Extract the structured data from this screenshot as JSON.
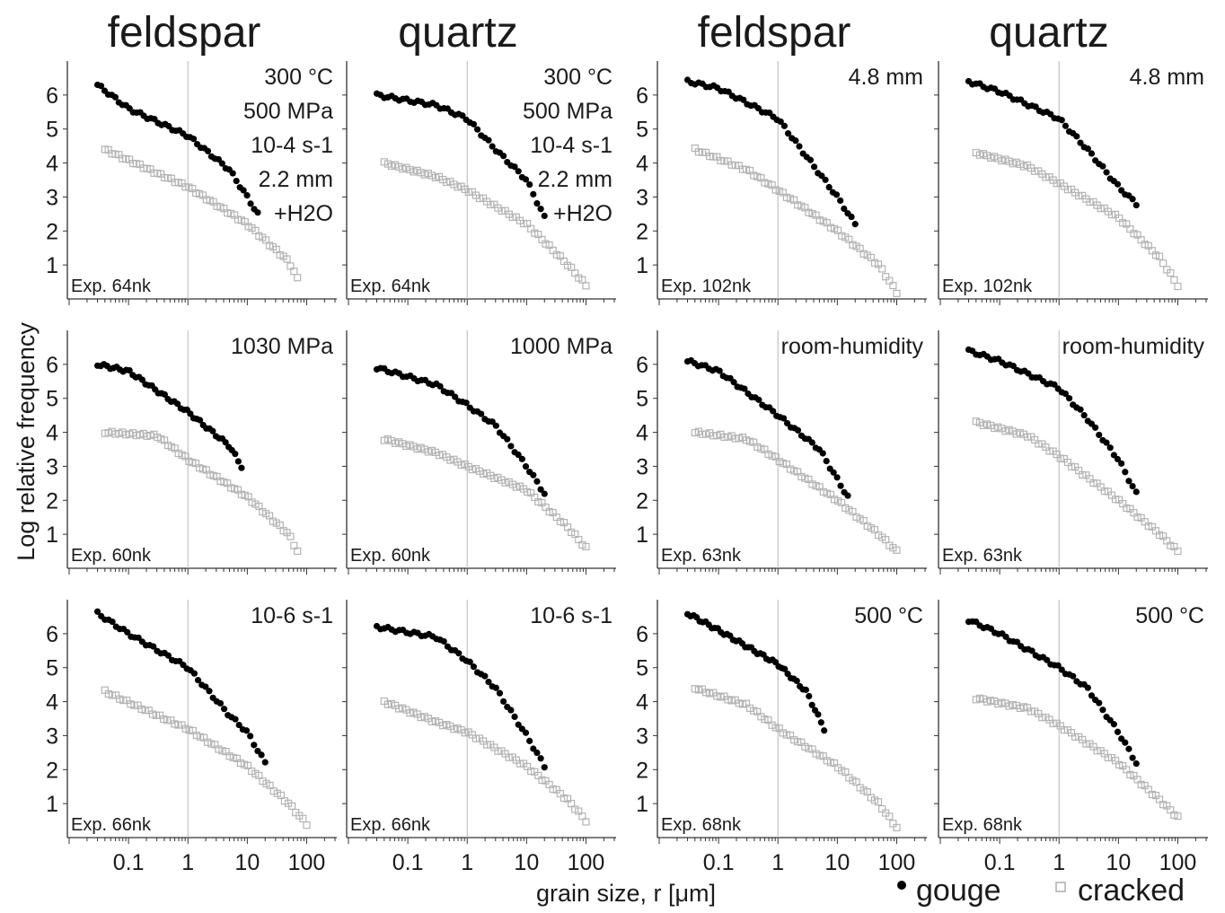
{
  "chart_data": {
    "type": "scatter",
    "column_titles": [
      "feldspar",
      "quartz",
      "feldspar",
      "quartz"
    ],
    "xlabel": "grain size, r [μm]",
    "ylabel": "Log relative frequency",
    "x_scale": "log",
    "xlim": [
      0.01,
      300
    ],
    "ylim": [
      0,
      7
    ],
    "x_ticks": [
      "0.1",
      "1",
      "10",
      "100"
    ],
    "y_ticks": [
      "1",
      "2",
      "3",
      "4",
      "5",
      "6"
    ],
    "legend": {
      "placement": "bottom-right",
      "gouge": "gouge",
      "cracked": "cracked"
    },
    "colors": {
      "gouge": "#000000",
      "cracked": "#b4b4b4",
      "axis": "#333333",
      "refline": "#bdbdbd"
    },
    "panels": [
      {
        "exp": "Exp. 64nk",
        "conditions": [
          "300 °C",
          "500 MPa",
          "10-4 s-1",
          "2.2 mm",
          "+H2O"
        ],
        "gouge": [
          [
            0.03,
            6.3
          ],
          [
            0.1,
            5.6
          ],
          [
            1,
            4.8
          ],
          [
            5,
            3.8
          ],
          [
            10,
            3.0
          ],
          [
            15,
            2.5
          ]
        ],
        "cracked": [
          [
            0.04,
            4.4
          ],
          [
            0.3,
            3.7
          ],
          [
            1,
            3.3
          ],
          [
            10,
            2.2
          ],
          [
            50,
            1.1
          ],
          [
            70,
            0.6
          ]
        ]
      },
      {
        "exp": "Exp. 64nk",
        "conditions": [
          "300 °C",
          "500 MPa",
          "10-4 s-1",
          "2.2 mm",
          "+H2O"
        ],
        "gouge": [
          [
            0.03,
            6.0
          ],
          [
            0.3,
            5.7
          ],
          [
            1,
            5.3
          ],
          [
            3,
            4.4
          ],
          [
            10,
            3.5
          ],
          [
            20,
            2.4
          ]
        ],
        "cracked": [
          [
            0.04,
            4.0
          ],
          [
            0.3,
            3.6
          ],
          [
            1,
            3.2
          ],
          [
            10,
            2.2
          ],
          [
            50,
            1.0
          ],
          [
            100,
            0.4
          ]
        ]
      },
      {
        "exp": "Exp. 102nk",
        "conditions": [
          "4.8 mm"
        ],
        "gouge": [
          [
            0.03,
            6.4
          ],
          [
            0.1,
            6.2
          ],
          [
            1,
            5.3
          ],
          [
            3,
            4.2
          ],
          [
            10,
            3.0
          ],
          [
            20,
            2.2
          ]
        ],
        "cracked": [
          [
            0.04,
            4.4
          ],
          [
            0.3,
            3.8
          ],
          [
            1,
            3.2
          ],
          [
            10,
            2.0
          ],
          [
            50,
            1.0
          ],
          [
            100,
            0.2
          ]
        ]
      },
      {
        "exp": "Exp. 102nk",
        "conditions": [
          "4.8 mm"
        ],
        "gouge": [
          [
            0.03,
            6.4
          ],
          [
            0.1,
            6.1
          ],
          [
            1,
            5.3
          ],
          [
            3,
            4.4
          ],
          [
            10,
            3.3
          ],
          [
            20,
            2.8
          ]
        ],
        "cracked": [
          [
            0.04,
            4.3
          ],
          [
            0.3,
            3.9
          ],
          [
            1,
            3.4
          ],
          [
            10,
            2.4
          ],
          [
            50,
            1.2
          ],
          [
            100,
            0.4
          ]
        ]
      },
      {
        "exp": "Exp. 60nk",
        "conditions": [
          "1030 MPa"
        ],
        "gouge": [
          [
            0.03,
            6.0
          ],
          [
            0.1,
            5.8
          ],
          [
            1,
            4.6
          ],
          [
            5,
            3.6
          ],
          [
            8,
            3.0
          ]
        ],
        "cracked": [
          [
            0.04,
            4.0
          ],
          [
            0.3,
            3.9
          ],
          [
            1,
            3.2
          ],
          [
            10,
            2.1
          ],
          [
            50,
            1.0
          ],
          [
            70,
            0.5
          ]
        ]
      },
      {
        "exp": "Exp. 60nk",
        "conditions": [
          "1000 MPa"
        ],
        "gouge": [
          [
            0.03,
            5.9
          ],
          [
            0.3,
            5.4
          ],
          [
            1,
            4.8
          ],
          [
            3,
            4.2
          ],
          [
            10,
            3.0
          ],
          [
            20,
            2.2
          ]
        ],
        "cracked": [
          [
            0.04,
            3.8
          ],
          [
            0.3,
            3.4
          ],
          [
            1,
            3.0
          ],
          [
            10,
            2.3
          ],
          [
            50,
            1.2
          ],
          [
            100,
            0.6
          ]
        ]
      },
      {
        "exp": "Exp. 63nk",
        "conditions": [
          "room-humidity"
        ],
        "gouge": [
          [
            0.03,
            6.1
          ],
          [
            0.1,
            5.8
          ],
          [
            1,
            4.5
          ],
          [
            5,
            3.5
          ],
          [
            15,
            2.1
          ]
        ],
        "cracked": [
          [
            0.04,
            4.0
          ],
          [
            0.3,
            3.8
          ],
          [
            1,
            3.2
          ],
          [
            10,
            2.0
          ],
          [
            50,
            1.0
          ],
          [
            100,
            0.5
          ]
        ]
      },
      {
        "exp": "Exp. 63nk",
        "conditions": [
          "room-humidity"
        ],
        "gouge": [
          [
            0.03,
            6.4
          ],
          [
            0.1,
            6.1
          ],
          [
            1,
            5.3
          ],
          [
            3,
            4.4
          ],
          [
            10,
            3.2
          ],
          [
            20,
            2.2
          ]
        ],
        "cracked": [
          [
            0.04,
            4.3
          ],
          [
            0.3,
            3.9
          ],
          [
            1,
            3.3
          ],
          [
            10,
            2.0
          ],
          [
            50,
            1.0
          ],
          [
            100,
            0.5
          ]
        ]
      },
      {
        "exp": "Exp. 66nk",
        "conditions": [
          "10-6 s-1"
        ],
        "gouge": [
          [
            0.03,
            6.6
          ],
          [
            0.1,
            6.0
          ],
          [
            1,
            5.0
          ],
          [
            5,
            3.6
          ],
          [
            10,
            3.1
          ],
          [
            20,
            2.2
          ]
        ],
        "cracked": [
          [
            0.04,
            4.3
          ],
          [
            0.3,
            3.6
          ],
          [
            1,
            3.2
          ],
          [
            10,
            2.1
          ],
          [
            50,
            1.0
          ],
          [
            100,
            0.4
          ]
        ]
      },
      {
        "exp": "Exp. 66nk",
        "conditions": [
          "10-6 s-1"
        ],
        "gouge": [
          [
            0.03,
            6.2
          ],
          [
            0.3,
            5.9
          ],
          [
            1,
            5.2
          ],
          [
            3,
            4.4
          ],
          [
            10,
            3.0
          ],
          [
            20,
            2.1
          ]
        ],
        "cracked": [
          [
            0.04,
            4.0
          ],
          [
            0.3,
            3.4
          ],
          [
            1,
            3.1
          ],
          [
            10,
            2.1
          ],
          [
            50,
            1.1
          ],
          [
            100,
            0.5
          ]
        ]
      },
      {
        "exp": "Exp. 68nk",
        "conditions": [
          "500 °C"
        ],
        "gouge": [
          [
            0.03,
            6.6
          ],
          [
            0.1,
            6.1
          ],
          [
            1,
            5.1
          ],
          [
            3,
            4.3
          ],
          [
            6,
            3.2
          ]
        ],
        "cracked": [
          [
            0.04,
            4.4
          ],
          [
            0.3,
            3.9
          ],
          [
            1,
            3.2
          ],
          [
            10,
            2.1
          ],
          [
            50,
            1.0
          ],
          [
            100,
            0.3
          ]
        ]
      },
      {
        "exp": "Exp. 68nk",
        "conditions": [
          "500 °C"
        ],
        "gouge": [
          [
            0.03,
            6.4
          ],
          [
            0.1,
            6.0
          ],
          [
            1,
            5.0
          ],
          [
            3,
            4.4
          ],
          [
            10,
            3.1
          ],
          [
            20,
            2.2
          ]
        ],
        "cracked": [
          [
            0.04,
            4.1
          ],
          [
            0.3,
            3.8
          ],
          [
            1,
            3.3
          ],
          [
            10,
            2.2
          ],
          [
            50,
            1.1
          ],
          [
            100,
            0.6
          ]
        ]
      }
    ]
  }
}
